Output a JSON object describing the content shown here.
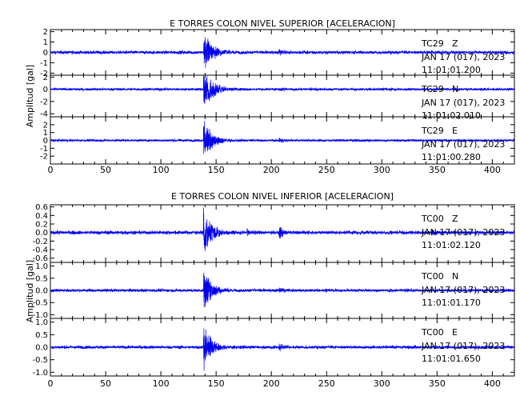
{
  "chart_data": [
    {
      "type": "line",
      "title": "E TORRES COLON NIVEL SUPERIOR [ACELERACION]",
      "ylabel": "Amplitud [gal]",
      "xlabel": "",
      "xlim": [
        0,
        420
      ],
      "x_ticks": [
        "0",
        "50",
        "100",
        "150",
        "200",
        "250",
        "300",
        "350",
        "400"
      ],
      "x_tick_values": [
        0,
        50,
        100,
        150,
        200,
        250,
        300,
        350,
        400
      ],
      "grid": false,
      "series": [
        {
          "name": "TC29 Z",
          "station": "TC29",
          "component": "Z",
          "date": "JAN 17 (017), 2023",
          "time": "11:01:01.200",
          "ylim": [
            -2.2,
            2.2
          ],
          "y_ticks": [
            "2",
            "1",
            "0",
            "-1",
            "-2"
          ],
          "y_tick_values": [
            2,
            1,
            0,
            -1,
            -2
          ],
          "noise": 0.15,
          "events": [
            {
              "t": 138.5,
              "amp": 2.2,
              "decay": 8
            },
            {
              "t": 207,
              "amp": 0.35,
              "decay": 5
            },
            {
              "t": 345,
              "amp": 0.12,
              "decay": 4
            }
          ]
        },
        {
          "name": "TC29 N",
          "station": "TC29",
          "component": "N",
          "date": "JAN 17 (017), 2023",
          "time": "11:01:02.010",
          "ylim": [
            -4.5,
            2.3
          ],
          "y_ticks": [
            "2",
            "0",
            "-2",
            "-4"
          ],
          "y_tick_values": [
            2,
            0,
            -2,
            -4
          ],
          "noise": 0.2,
          "events": [
            {
              "t": 138.5,
              "amp": 3.5,
              "decay": 9
            },
            {
              "t": 207,
              "amp": 0.4,
              "decay": 5
            }
          ]
        },
        {
          "name": "TC29 E",
          "station": "TC29",
          "component": "E",
          "date": "JAN 17 (017), 2023",
          "time": "11:01:00.280",
          "ylim": [
            -3.0,
            3.0
          ],
          "y_ticks": [
            "2",
            "1",
            "0",
            "-1",
            "-2"
          ],
          "y_tick_values": [
            2,
            1,
            0,
            -1,
            -2
          ],
          "noise": 0.15,
          "events": [
            {
              "t": 138.5,
              "amp": 3.0,
              "decay": 8
            },
            {
              "t": 207,
              "amp": 0.35,
              "decay": 5
            }
          ]
        }
      ]
    },
    {
      "type": "line",
      "title": "E TORRES COLON NIVEL INFERIOR [ACELERACION]",
      "ylabel": "Amplitud [gal]",
      "xlabel": "",
      "xlim": [
        0,
        420
      ],
      "x_ticks": [
        "0",
        "50",
        "100",
        "150",
        "200",
        "250",
        "300",
        "350",
        "400"
      ],
      "x_tick_values": [
        0,
        50,
        100,
        150,
        200,
        250,
        300,
        350,
        400
      ],
      "grid": false,
      "series": [
        {
          "name": "TC00 Z",
          "station": "TC00",
          "component": "Z",
          "date": "JAN 17 (017), 2023",
          "time": "11:01:02.120",
          "ylim": [
            -0.7,
            0.65
          ],
          "y_ticks": [
            "0.6",
            "0.4",
            "0.2",
            "0.0",
            "-0.2",
            "-0.4",
            "-0.6"
          ],
          "y_tick_values": [
            0.6,
            0.4,
            0.2,
            0.0,
            -0.2,
            -0.4,
            -0.6
          ],
          "noise": 0.04,
          "events": [
            {
              "t": 138.5,
              "amp": 0.65,
              "decay": 7
            },
            {
              "t": 178,
              "amp": 0.12,
              "decay": 3
            },
            {
              "t": 207,
              "amp": 0.2,
              "decay": 4
            },
            {
              "t": 345,
              "amp": 0.08,
              "decay": 4
            }
          ]
        },
        {
          "name": "TC00 N",
          "station": "TC00",
          "component": "N",
          "date": "JAN 17 (017), 2023",
          "time": "11:01:01.170",
          "ylim": [
            -1.15,
            1.15
          ],
          "y_ticks": [
            "1.0",
            "0.5",
            "0.0",
            "-0.5",
            "-1.0"
          ],
          "y_tick_values": [
            1.0,
            0.5,
            0.0,
            -0.5,
            -1.0
          ],
          "noise": 0.06,
          "events": [
            {
              "t": 138.5,
              "amp": 1.1,
              "decay": 7
            },
            {
              "t": 207,
              "amp": 0.18,
              "decay": 4
            }
          ]
        },
        {
          "name": "TC00 E",
          "station": "TC00",
          "component": "E",
          "date": "JAN 17 (017), 2023",
          "time": "11:01:01.650",
          "ylim": [
            -1.15,
            1.15
          ],
          "y_ticks": [
            "1.0",
            "0.5",
            "0.0",
            "-0.5",
            "-1.0"
          ],
          "y_tick_values": [
            1.0,
            0.5,
            0.0,
            -0.5,
            -1.0
          ],
          "noise": 0.06,
          "events": [
            {
              "t": 138.5,
              "amp": 1.1,
              "decay": 7
            },
            {
              "t": 207,
              "amp": 0.18,
              "decay": 4
            }
          ]
        }
      ]
    }
  ],
  "colors": {
    "trace": "#0000ee",
    "axis": "#000000",
    "background": "#ffffff"
  }
}
